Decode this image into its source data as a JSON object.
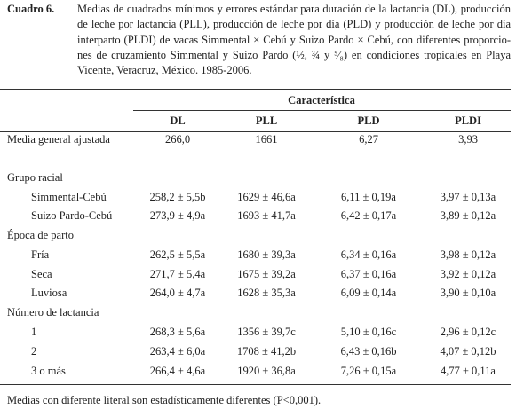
{
  "caption": {
    "label": "Cuadro 6.",
    "lines": [
      "Medias de cuadrados mínimos y errores estándar para duración de la lactancia (DL), producción",
      "de leche por lactancia (PLL), producción de leche por día (PLD) y producción de leche por día",
      "interparto (PLDI) de vacas Simmental × Cebú y Suizo Pardo × Cebú, con diferentes proporcio-",
      "nes de cruzamiento Simmental y Suizo Pardo (½, ¾ y ⁵⁄₈) en condiciones tropicales en Playa",
      "Vicente, Veracruz, México. 1985-2006."
    ]
  },
  "table": {
    "spanner": "Característica",
    "columns": [
      "DL",
      "PLL",
      "PLD",
      "PLDI"
    ],
    "rows": [
      [
        "Media general ajustada",
        "266,0",
        "1661",
        "6,27",
        "3,93"
      ],
      [
        "Grupo racial"
      ],
      [
        "Simmental-Cebú",
        "258,2 ± 5,5b",
        "1629 ± 46,6a",
        "6,11 ± 0,19a",
        "3,97 ± 0,13a"
      ],
      [
        "Suizo Pardo-Cebú",
        "273,9 ± 4,9a",
        "1693 ± 41,7a",
        "6,42 ± 0,17a",
        "3,89 ± 0,12a"
      ],
      [
        "Época de parto"
      ],
      [
        "Fría",
        "262,5 ± 5,5a",
        "1680 ± 39,3a",
        "6,34 ± 0,16a",
        "3,98 ± 0,12a"
      ],
      [
        "Seca",
        "271,7 ± 5,4a",
        "1675 ± 39,2a",
        "6,37 ± 0,16a",
        "3,92 ± 0,12a"
      ],
      [
        "Luviosa",
        "264,0 ± 4,7a",
        "1628 ± 35,3a",
        "6,09 ± 0,14a",
        "3,90 ± 0,10a"
      ],
      [
        "Número de lactancia"
      ],
      [
        "1",
        "268,3 ± 5,6a",
        "1356 ± 39,7c",
        "5,10 ± 0,16c",
        "2,96 ± 0,12c"
      ],
      [
        "2",
        "263,4 ± 6,0a",
        "1708 ± 41,2b",
        "6,43 ± 0,16b",
        "4,07 ± 0,12b"
      ],
      [
        "3 o más",
        "266,4 ± 4,6a",
        "1920 ± 36,8a",
        "7,26 ± 0,15a",
        "4,77 ± 0,11a"
      ]
    ]
  },
  "footnote": "Medias con diferente literal son estadísticamente diferentes (P<0,001)."
}
